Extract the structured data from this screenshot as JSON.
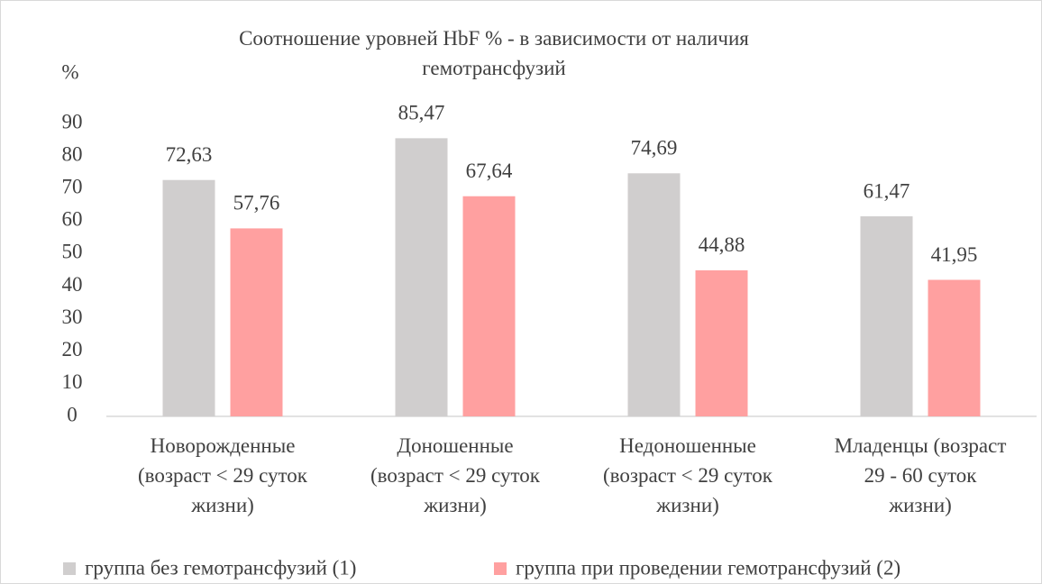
{
  "chart_data": {
    "type": "bar",
    "title": "Соотношение уровней HbF % - в зависимости от наличия\nгемотрансфузий",
    "y_label": "%",
    "categories": [
      "Новорожденные\n(возраст < 29 суток\nжизни)",
      "Доношенные\n(возраст < 29 суток\nжизни)",
      "Недоношенные\n(возраст < 29 суток\nжизни)",
      "Младенцы (возраст\n29 - 60 суток\nжизни)"
    ],
    "series": [
      {
        "name": "группа без гемотрансфузий (1)",
        "color": "#d0cece",
        "values": [
          72.63,
          85.47,
          74.69,
          61.47
        ],
        "value_labels": [
          "72,63",
          "85,47",
          "74,69",
          "61,47"
        ]
      },
      {
        "name": "группа при проведении гемотрансфузий (2)",
        "color": "#ffa0a0",
        "values": [
          57.76,
          67.64,
          44.88,
          41.95
        ],
        "value_labels": [
          "57,76",
          "67,64",
          "44,88",
          "41,95"
        ]
      }
    ],
    "ylim": [
      0,
      90
    ],
    "yticks": [
      0,
      10,
      20,
      30,
      40,
      50,
      60,
      70,
      80,
      90
    ],
    "grid": false,
    "legend": "bottom"
  }
}
